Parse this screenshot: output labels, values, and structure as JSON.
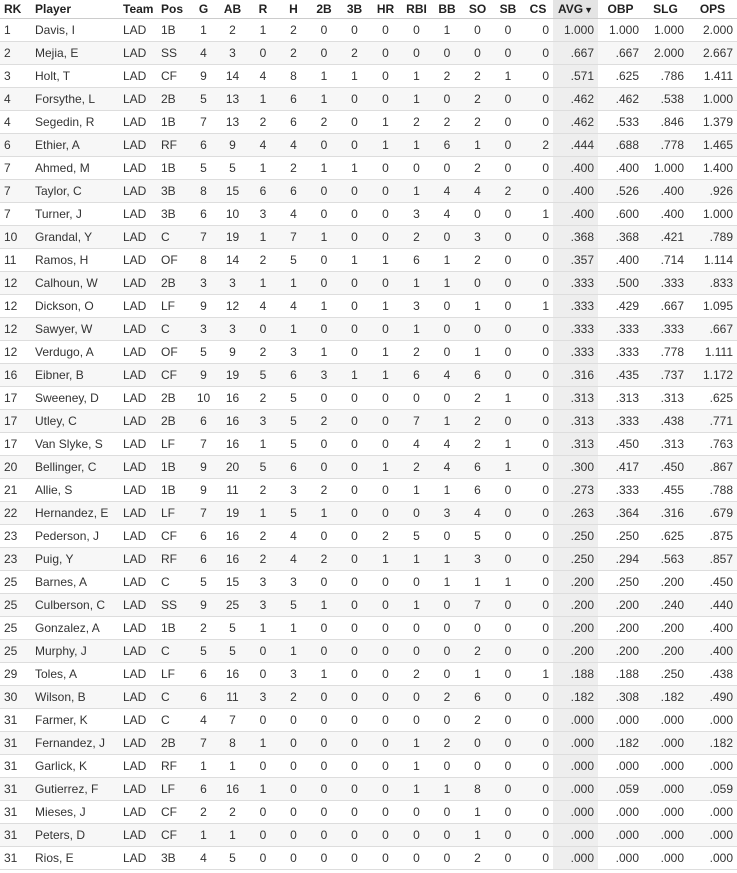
{
  "columns": {
    "rk": "RK",
    "player": "Player",
    "team": "Team",
    "pos": "Pos",
    "g": "G",
    "ab": "AB",
    "r": "R",
    "h": "H",
    "doubles": "2B",
    "triples": "3B",
    "hr": "HR",
    "rbi": "RBI",
    "bb": "BB",
    "so": "SO",
    "sb": "SB",
    "cs": "CS",
    "avg": "AVG",
    "obp": "OBP",
    "slg": "SLG",
    "ops": "OPS",
    "sort_indicator": "▼"
  },
  "rows": [
    {
      "rk": "1",
      "player": "Davis, I",
      "team": "LAD",
      "pos": "1B",
      "g": "1",
      "ab": "2",
      "r": "1",
      "h": "2",
      "doubles": "0",
      "triples": "0",
      "hr": "0",
      "rbi": "0",
      "bb": "1",
      "so": "0",
      "sb": "0",
      "cs": "0",
      "avg": "1.000",
      "obp": "1.000",
      "slg": "1.000",
      "ops": "2.000"
    },
    {
      "rk": "2",
      "player": "Mejia, E",
      "team": "LAD",
      "pos": "SS",
      "g": "4",
      "ab": "3",
      "r": "0",
      "h": "2",
      "doubles": "0",
      "triples": "2",
      "hr": "0",
      "rbi": "0",
      "bb": "0",
      "so": "0",
      "sb": "0",
      "cs": "0",
      "avg": ".667",
      "obp": ".667",
      "slg": "2.000",
      "ops": "2.667"
    },
    {
      "rk": "3",
      "player": "Holt, T",
      "team": "LAD",
      "pos": "CF",
      "g": "9",
      "ab": "14",
      "r": "4",
      "h": "8",
      "doubles": "1",
      "triples": "1",
      "hr": "0",
      "rbi": "1",
      "bb": "2",
      "so": "2",
      "sb": "1",
      "cs": "0",
      "avg": ".571",
      "obp": ".625",
      "slg": ".786",
      "ops": "1.411"
    },
    {
      "rk": "4",
      "player": "Forsythe, L",
      "team": "LAD",
      "pos": "2B",
      "g": "5",
      "ab": "13",
      "r": "1",
      "h": "6",
      "doubles": "1",
      "triples": "0",
      "hr": "0",
      "rbi": "1",
      "bb": "0",
      "so": "2",
      "sb": "0",
      "cs": "0",
      "avg": ".462",
      "obp": ".462",
      "slg": ".538",
      "ops": "1.000"
    },
    {
      "rk": "4",
      "player": "Segedin, R",
      "team": "LAD",
      "pos": "1B",
      "g": "7",
      "ab": "13",
      "r": "2",
      "h": "6",
      "doubles": "2",
      "triples": "0",
      "hr": "1",
      "rbi": "2",
      "bb": "2",
      "so": "2",
      "sb": "0",
      "cs": "0",
      "avg": ".462",
      "obp": ".533",
      "slg": ".846",
      "ops": "1.379"
    },
    {
      "rk": "6",
      "player": "Ethier, A",
      "team": "LAD",
      "pos": "RF",
      "g": "6",
      "ab": "9",
      "r": "4",
      "h": "4",
      "doubles": "0",
      "triples": "0",
      "hr": "1",
      "rbi": "1",
      "bb": "6",
      "so": "1",
      "sb": "0",
      "cs": "2",
      "avg": ".444",
      "obp": ".688",
      "slg": ".778",
      "ops": "1.465"
    },
    {
      "rk": "7",
      "player": "Ahmed, M",
      "team": "LAD",
      "pos": "1B",
      "g": "5",
      "ab": "5",
      "r": "1",
      "h": "2",
      "doubles": "1",
      "triples": "1",
      "hr": "0",
      "rbi": "0",
      "bb": "0",
      "so": "2",
      "sb": "0",
      "cs": "0",
      "avg": ".400",
      "obp": ".400",
      "slg": "1.000",
      "ops": "1.400"
    },
    {
      "rk": "7",
      "player": "Taylor, C",
      "team": "LAD",
      "pos": "3B",
      "g": "8",
      "ab": "15",
      "r": "6",
      "h": "6",
      "doubles": "0",
      "triples": "0",
      "hr": "0",
      "rbi": "1",
      "bb": "4",
      "so": "4",
      "sb": "2",
      "cs": "0",
      "avg": ".400",
      "obp": ".526",
      "slg": ".400",
      "ops": ".926"
    },
    {
      "rk": "7",
      "player": "Turner, J",
      "team": "LAD",
      "pos": "3B",
      "g": "6",
      "ab": "10",
      "r": "3",
      "h": "4",
      "doubles": "0",
      "triples": "0",
      "hr": "0",
      "rbi": "3",
      "bb": "4",
      "so": "0",
      "sb": "0",
      "cs": "1",
      "avg": ".400",
      "obp": ".600",
      "slg": ".400",
      "ops": "1.000"
    },
    {
      "rk": "10",
      "player": "Grandal, Y",
      "team": "LAD",
      "pos": "C",
      "g": "7",
      "ab": "19",
      "r": "1",
      "h": "7",
      "doubles": "1",
      "triples": "0",
      "hr": "0",
      "rbi": "2",
      "bb": "0",
      "so": "3",
      "sb": "0",
      "cs": "0",
      "avg": ".368",
      "obp": ".368",
      "slg": ".421",
      "ops": ".789"
    },
    {
      "rk": "11",
      "player": "Ramos, H",
      "team": "LAD",
      "pos": "OF",
      "g": "8",
      "ab": "14",
      "r": "2",
      "h": "5",
      "doubles": "0",
      "triples": "1",
      "hr": "1",
      "rbi": "6",
      "bb": "1",
      "so": "2",
      "sb": "0",
      "cs": "0",
      "avg": ".357",
      "obp": ".400",
      "slg": ".714",
      "ops": "1.114"
    },
    {
      "rk": "12",
      "player": "Calhoun, W",
      "team": "LAD",
      "pos": "2B",
      "g": "3",
      "ab": "3",
      "r": "1",
      "h": "1",
      "doubles": "0",
      "triples": "0",
      "hr": "0",
      "rbi": "1",
      "bb": "1",
      "so": "0",
      "sb": "0",
      "cs": "0",
      "avg": ".333",
      "obp": ".500",
      "slg": ".333",
      "ops": ".833"
    },
    {
      "rk": "12",
      "player": "Dickson, O",
      "team": "LAD",
      "pos": "LF",
      "g": "9",
      "ab": "12",
      "r": "4",
      "h": "4",
      "doubles": "1",
      "triples": "0",
      "hr": "1",
      "rbi": "3",
      "bb": "0",
      "so": "1",
      "sb": "0",
      "cs": "1",
      "avg": ".333",
      "obp": ".429",
      "slg": ".667",
      "ops": "1.095"
    },
    {
      "rk": "12",
      "player": "Sawyer, W",
      "team": "LAD",
      "pos": "C",
      "g": "3",
      "ab": "3",
      "r": "0",
      "h": "1",
      "doubles": "0",
      "triples": "0",
      "hr": "0",
      "rbi": "1",
      "bb": "0",
      "so": "0",
      "sb": "0",
      "cs": "0",
      "avg": ".333",
      "obp": ".333",
      "slg": ".333",
      "ops": ".667"
    },
    {
      "rk": "12",
      "player": "Verdugo, A",
      "team": "LAD",
      "pos": "OF",
      "g": "5",
      "ab": "9",
      "r": "2",
      "h": "3",
      "doubles": "1",
      "triples": "0",
      "hr": "1",
      "rbi": "2",
      "bb": "0",
      "so": "1",
      "sb": "0",
      "cs": "0",
      "avg": ".333",
      "obp": ".333",
      "slg": ".778",
      "ops": "1.111"
    },
    {
      "rk": "16",
      "player": "Eibner, B",
      "team": "LAD",
      "pos": "CF",
      "g": "9",
      "ab": "19",
      "r": "5",
      "h": "6",
      "doubles": "3",
      "triples": "1",
      "hr": "1",
      "rbi": "6",
      "bb": "4",
      "so": "6",
      "sb": "0",
      "cs": "0",
      "avg": ".316",
      "obp": ".435",
      "slg": ".737",
      "ops": "1.172"
    },
    {
      "rk": "17",
      "player": "Sweeney, D",
      "team": "LAD",
      "pos": "2B",
      "g": "10",
      "ab": "16",
      "r": "2",
      "h": "5",
      "doubles": "0",
      "triples": "0",
      "hr": "0",
      "rbi": "0",
      "bb": "0",
      "so": "2",
      "sb": "1",
      "cs": "0",
      "avg": ".313",
      "obp": ".313",
      "slg": ".313",
      "ops": ".625"
    },
    {
      "rk": "17",
      "player": "Utley, C",
      "team": "LAD",
      "pos": "2B",
      "g": "6",
      "ab": "16",
      "r": "3",
      "h": "5",
      "doubles": "2",
      "triples": "0",
      "hr": "0",
      "rbi": "7",
      "bb": "1",
      "so": "2",
      "sb": "0",
      "cs": "0",
      "avg": ".313",
      "obp": ".333",
      "slg": ".438",
      "ops": ".771"
    },
    {
      "rk": "17",
      "player": "Van Slyke, S",
      "team": "LAD",
      "pos": "LF",
      "g": "7",
      "ab": "16",
      "r": "1",
      "h": "5",
      "doubles": "0",
      "triples": "0",
      "hr": "0",
      "rbi": "4",
      "bb": "4",
      "so": "2",
      "sb": "1",
      "cs": "0",
      "avg": ".313",
      "obp": ".450",
      "slg": ".313",
      "ops": ".763"
    },
    {
      "rk": "20",
      "player": "Bellinger, C",
      "team": "LAD",
      "pos": "1B",
      "g": "9",
      "ab": "20",
      "r": "5",
      "h": "6",
      "doubles": "0",
      "triples": "0",
      "hr": "1",
      "rbi": "2",
      "bb": "4",
      "so": "6",
      "sb": "1",
      "cs": "0",
      "avg": ".300",
      "obp": ".417",
      "slg": ".450",
      "ops": ".867"
    },
    {
      "rk": "21",
      "player": "Allie, S",
      "team": "LAD",
      "pos": "1B",
      "g": "9",
      "ab": "11",
      "r": "2",
      "h": "3",
      "doubles": "2",
      "triples": "0",
      "hr": "0",
      "rbi": "1",
      "bb": "1",
      "so": "6",
      "sb": "0",
      "cs": "0",
      "avg": ".273",
      "obp": ".333",
      "slg": ".455",
      "ops": ".788"
    },
    {
      "rk": "22",
      "player": "Hernandez, E",
      "team": "LAD",
      "pos": "LF",
      "g": "7",
      "ab": "19",
      "r": "1",
      "h": "5",
      "doubles": "1",
      "triples": "0",
      "hr": "0",
      "rbi": "0",
      "bb": "3",
      "so": "4",
      "sb": "0",
      "cs": "0",
      "avg": ".263",
      "obp": ".364",
      "slg": ".316",
      "ops": ".679"
    },
    {
      "rk": "23",
      "player": "Pederson, J",
      "team": "LAD",
      "pos": "CF",
      "g": "6",
      "ab": "16",
      "r": "2",
      "h": "4",
      "doubles": "0",
      "triples": "0",
      "hr": "2",
      "rbi": "5",
      "bb": "0",
      "so": "5",
      "sb": "0",
      "cs": "0",
      "avg": ".250",
      "obp": ".250",
      "slg": ".625",
      "ops": ".875"
    },
    {
      "rk": "23",
      "player": "Puig, Y",
      "team": "LAD",
      "pos": "RF",
      "g": "6",
      "ab": "16",
      "r": "2",
      "h": "4",
      "doubles": "2",
      "triples": "0",
      "hr": "1",
      "rbi": "1",
      "bb": "1",
      "so": "3",
      "sb": "0",
      "cs": "0",
      "avg": ".250",
      "obp": ".294",
      "slg": ".563",
      "ops": ".857"
    },
    {
      "rk": "25",
      "player": "Barnes, A",
      "team": "LAD",
      "pos": "C",
      "g": "5",
      "ab": "15",
      "r": "3",
      "h": "3",
      "doubles": "0",
      "triples": "0",
      "hr": "0",
      "rbi": "0",
      "bb": "1",
      "so": "1",
      "sb": "1",
      "cs": "0",
      "avg": ".200",
      "obp": ".250",
      "slg": ".200",
      "ops": ".450"
    },
    {
      "rk": "25",
      "player": "Culberson, C",
      "team": "LAD",
      "pos": "SS",
      "g": "9",
      "ab": "25",
      "r": "3",
      "h": "5",
      "doubles": "1",
      "triples": "0",
      "hr": "0",
      "rbi": "1",
      "bb": "0",
      "so": "7",
      "sb": "0",
      "cs": "0",
      "avg": ".200",
      "obp": ".200",
      "slg": ".240",
      "ops": ".440"
    },
    {
      "rk": "25",
      "player": "Gonzalez, A",
      "team": "LAD",
      "pos": "1B",
      "g": "2",
      "ab": "5",
      "r": "1",
      "h": "1",
      "doubles": "0",
      "triples": "0",
      "hr": "0",
      "rbi": "0",
      "bb": "0",
      "so": "0",
      "sb": "0",
      "cs": "0",
      "avg": ".200",
      "obp": ".200",
      "slg": ".200",
      "ops": ".400"
    },
    {
      "rk": "25",
      "player": "Murphy, J",
      "team": "LAD",
      "pos": "C",
      "g": "5",
      "ab": "5",
      "r": "0",
      "h": "1",
      "doubles": "0",
      "triples": "0",
      "hr": "0",
      "rbi": "0",
      "bb": "0",
      "so": "2",
      "sb": "0",
      "cs": "0",
      "avg": ".200",
      "obp": ".200",
      "slg": ".200",
      "ops": ".400"
    },
    {
      "rk": "29",
      "player": "Toles, A",
      "team": "LAD",
      "pos": "LF",
      "g": "6",
      "ab": "16",
      "r": "0",
      "h": "3",
      "doubles": "1",
      "triples": "0",
      "hr": "0",
      "rbi": "2",
      "bb": "0",
      "so": "1",
      "sb": "0",
      "cs": "1",
      "avg": ".188",
      "obp": ".188",
      "slg": ".250",
      "ops": ".438"
    },
    {
      "rk": "30",
      "player": "Wilson, B",
      "team": "LAD",
      "pos": "C",
      "g": "6",
      "ab": "11",
      "r": "3",
      "h": "2",
      "doubles": "0",
      "triples": "0",
      "hr": "0",
      "rbi": "0",
      "bb": "2",
      "so": "6",
      "sb": "0",
      "cs": "0",
      "avg": ".182",
      "obp": ".308",
      "slg": ".182",
      "ops": ".490"
    },
    {
      "rk": "31",
      "player": "Farmer, K",
      "team": "LAD",
      "pos": "C",
      "g": "4",
      "ab": "7",
      "r": "0",
      "h": "0",
      "doubles": "0",
      "triples": "0",
      "hr": "0",
      "rbi": "0",
      "bb": "0",
      "so": "2",
      "sb": "0",
      "cs": "0",
      "avg": ".000",
      "obp": ".000",
      "slg": ".000",
      "ops": ".000"
    },
    {
      "rk": "31",
      "player": "Fernandez, J",
      "team": "LAD",
      "pos": "2B",
      "g": "7",
      "ab": "8",
      "r": "1",
      "h": "0",
      "doubles": "0",
      "triples": "0",
      "hr": "0",
      "rbi": "1",
      "bb": "2",
      "so": "0",
      "sb": "0",
      "cs": "0",
      "avg": ".000",
      "obp": ".182",
      "slg": ".000",
      "ops": ".182"
    },
    {
      "rk": "31",
      "player": "Garlick, K",
      "team": "LAD",
      "pos": "RF",
      "g": "1",
      "ab": "1",
      "r": "0",
      "h": "0",
      "doubles": "0",
      "triples": "0",
      "hr": "0",
      "rbi": "1",
      "bb": "0",
      "so": "0",
      "sb": "0",
      "cs": "0",
      "avg": ".000",
      "obp": ".000",
      "slg": ".000",
      "ops": ".000"
    },
    {
      "rk": "31",
      "player": "Gutierrez, F",
      "team": "LAD",
      "pos": "LF",
      "g": "6",
      "ab": "16",
      "r": "1",
      "h": "0",
      "doubles": "0",
      "triples": "0",
      "hr": "0",
      "rbi": "1",
      "bb": "1",
      "so": "8",
      "sb": "0",
      "cs": "0",
      "avg": ".000",
      "obp": ".059",
      "slg": ".000",
      "ops": ".059"
    },
    {
      "rk": "31",
      "player": "Mieses, J",
      "team": "LAD",
      "pos": "CF",
      "g": "2",
      "ab": "2",
      "r": "0",
      "h": "0",
      "doubles": "0",
      "triples": "0",
      "hr": "0",
      "rbi": "0",
      "bb": "0",
      "so": "1",
      "sb": "0",
      "cs": "0",
      "avg": ".000",
      "obp": ".000",
      "slg": ".000",
      "ops": ".000"
    },
    {
      "rk": "31",
      "player": "Peters, D",
      "team": "LAD",
      "pos": "CF",
      "g": "1",
      "ab": "1",
      "r": "0",
      "h": "0",
      "doubles": "0",
      "triples": "0",
      "hr": "0",
      "rbi": "0",
      "bb": "0",
      "so": "1",
      "sb": "0",
      "cs": "0",
      "avg": ".000",
      "obp": ".000",
      "slg": ".000",
      "ops": ".000"
    },
    {
      "rk": "31",
      "player": "Rios, E",
      "team": "LAD",
      "pos": "3B",
      "g": "4",
      "ab": "5",
      "r": "0",
      "h": "0",
      "doubles": "0",
      "triples": "0",
      "hr": "0",
      "rbi": "0",
      "bb": "0",
      "so": "2",
      "sb": "0",
      "cs": "0",
      "avg": ".000",
      "obp": ".000",
      "slg": ".000",
      "ops": ".000"
    }
  ]
}
